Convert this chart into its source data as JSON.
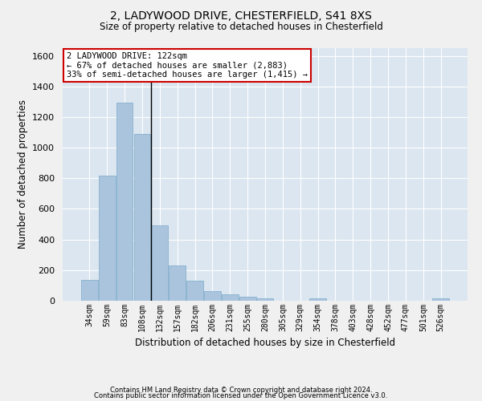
{
  "title_line1": "2, LADYWOOD DRIVE, CHESTERFIELD, S41 8XS",
  "title_line2": "Size of property relative to detached houses in Chesterfield",
  "xlabel": "Distribution of detached houses by size in Chesterfield",
  "ylabel": "Number of detached properties",
  "footnote1": "Contains HM Land Registry data © Crown copyright and database right 2024.",
  "footnote2": "Contains public sector information licensed under the Open Government Licence v3.0.",
  "bar_labels": [
    "34sqm",
    "59sqm",
    "83sqm",
    "108sqm",
    "132sqm",
    "157sqm",
    "182sqm",
    "206sqm",
    "231sqm",
    "255sqm",
    "280sqm",
    "305sqm",
    "329sqm",
    "354sqm",
    "378sqm",
    "403sqm",
    "428sqm",
    "452sqm",
    "477sqm",
    "501sqm",
    "526sqm"
  ],
  "bar_values": [
    135,
    815,
    1295,
    1090,
    495,
    230,
    130,
    65,
    40,
    27,
    15,
    0,
    0,
    15,
    0,
    0,
    0,
    0,
    0,
    0,
    15
  ],
  "bar_color": "#aac4de",
  "bar_edge_color": "#7aaac8",
  "vline_x": 3.5,
  "annotation_line1": "2 LADYWOOD DRIVE: 122sqm",
  "annotation_line2": "← 67% of detached houses are smaller (2,883)",
  "annotation_line3": "33% of semi-detached houses are larger (1,415) →",
  "annotation_box_facecolor": "#ffffff",
  "annotation_box_edgecolor": "#cc0000",
  "ylim": [
    0,
    1650
  ],
  "yticks": [
    0,
    200,
    400,
    600,
    800,
    1000,
    1200,
    1400,
    1600
  ],
  "background_color": "#e8eef5",
  "plot_bg_color": "#dce6f0",
  "grid_color": "#ffffff",
  "fig_facecolor": "#f0f0f0",
  "figsize": [
    6.0,
    5.0
  ],
  "dpi": 100
}
